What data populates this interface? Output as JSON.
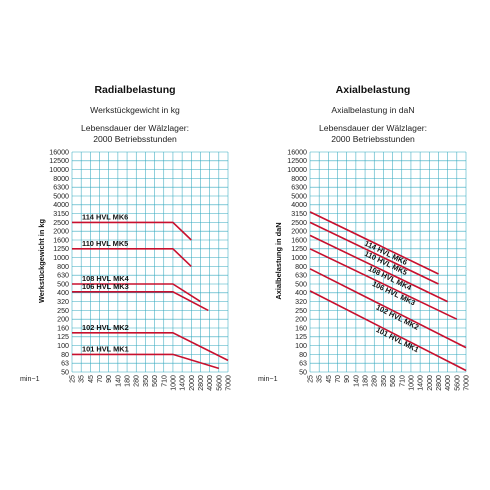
{
  "chart_data": [
    {
      "type": "line",
      "title": "Radialbelastung",
      "subtitle": "Werkstückgewicht in kg",
      "note_line1": "Lebensdauer der Wälzlager:",
      "note_line2": "2000 Betriebsstunden",
      "ylabel": "Werkstückgewicht in kg",
      "xlabel": "min−1",
      "scale": "log-log",
      "xlim": [
        25,
        7000
      ],
      "ylim": [
        50,
        16000
      ],
      "x_ticks": [
        "25",
        "35",
        "45",
        "70",
        "90",
        "140",
        "180",
        "280",
        "350",
        "560",
        "710",
        "1000",
        "1400",
        "2000",
        "2800",
        "4000",
        "5600",
        "7000"
      ],
      "y_ticks": [
        "16000",
        "12500",
        "10000",
        "8000",
        "6300",
        "5000",
        "4000",
        "3150",
        "2500",
        "2000",
        "1600",
        "1250",
        "1000",
        "800",
        "630",
        "500",
        "400",
        "320",
        "250",
        "200",
        "160",
        "125",
        "100",
        "80",
        "63",
        "50"
      ],
      "series": [
        {
          "name": "114 HVL MK6",
          "color": "#c8102e",
          "x": [
            25,
            1000,
            2000
          ],
          "y": [
            2500,
            2500,
            1600
          ]
        },
        {
          "name": "110 HVL MK5",
          "color": "#c8102e",
          "x": [
            25,
            1000,
            2000
          ],
          "y": [
            1250,
            1250,
            800
          ]
        },
        {
          "name": "108 HVL MK4",
          "color": "#c8102e",
          "x": [
            25,
            1000,
            2800
          ],
          "y": [
            500,
            500,
            320
          ]
        },
        {
          "name": "106 HVL MK3",
          "color": "#c8102e",
          "x": [
            25,
            1000,
            3800
          ],
          "y": [
            410,
            410,
            250
          ]
        },
        {
          "name": "102 HVL MK2",
          "color": "#c8102e",
          "x": [
            25,
            1000,
            7000
          ],
          "y": [
            140,
            140,
            68
          ]
        },
        {
          "name": "101 HVL MK1",
          "color": "#c8102e",
          "x": [
            25,
            1000,
            5600
          ],
          "y": [
            80,
            80,
            55
          ]
        }
      ]
    },
    {
      "type": "line",
      "title": "Axialbelastung",
      "subtitle": "Axialbelastung in daN",
      "note_line1": "Lebensdauer der Wälzlager:",
      "note_line2": "2000 Betriebsstunden",
      "ylabel": "Axialbelastung in daN",
      "xlabel": "min−1",
      "scale": "log-log",
      "xlim": [
        25,
        7000
      ],
      "ylim": [
        50,
        16000
      ],
      "x_ticks": [
        "25",
        "35",
        "45",
        "70",
        "90",
        "140",
        "180",
        "280",
        "350",
        "560",
        "710",
        "1000",
        "1400",
        "2000",
        "2800",
        "4000",
        "5600",
        "7000"
      ],
      "y_ticks": [
        "16000",
        "12500",
        "10000",
        "8000",
        "6300",
        "5000",
        "4000",
        "3150",
        "2500",
        "2000",
        "1600",
        "1250",
        "1000",
        "800",
        "630",
        "500",
        "400",
        "320",
        "250",
        "200",
        "160",
        "125",
        "100",
        "80",
        "63",
        "50"
      ],
      "series": [
        {
          "name": "114 HVL MK6",
          "color": "#c8102e",
          "x": [
            25,
            2800
          ],
          "y": [
            3300,
            650
          ]
        },
        {
          "name": "110 HVL MK5",
          "color": "#c8102e",
          "x": [
            25,
            2800
          ],
          "y": [
            2500,
            500
          ]
        },
        {
          "name": "108 HVL MK4",
          "color": "#c8102e",
          "x": [
            25,
            4000
          ],
          "y": [
            1800,
            320
          ]
        },
        {
          "name": "106 HVL MK3",
          "color": "#c8102e",
          "x": [
            25,
            5600
          ],
          "y": [
            1250,
            200
          ]
        },
        {
          "name": "102 HVL MK2",
          "color": "#c8102e",
          "x": [
            25,
            7000
          ],
          "y": [
            750,
            95
          ]
        },
        {
          "name": "101 HVL MK1",
          "color": "#c8102e",
          "x": [
            25,
            7000
          ],
          "y": [
            420,
            52
          ]
        }
      ]
    }
  ]
}
